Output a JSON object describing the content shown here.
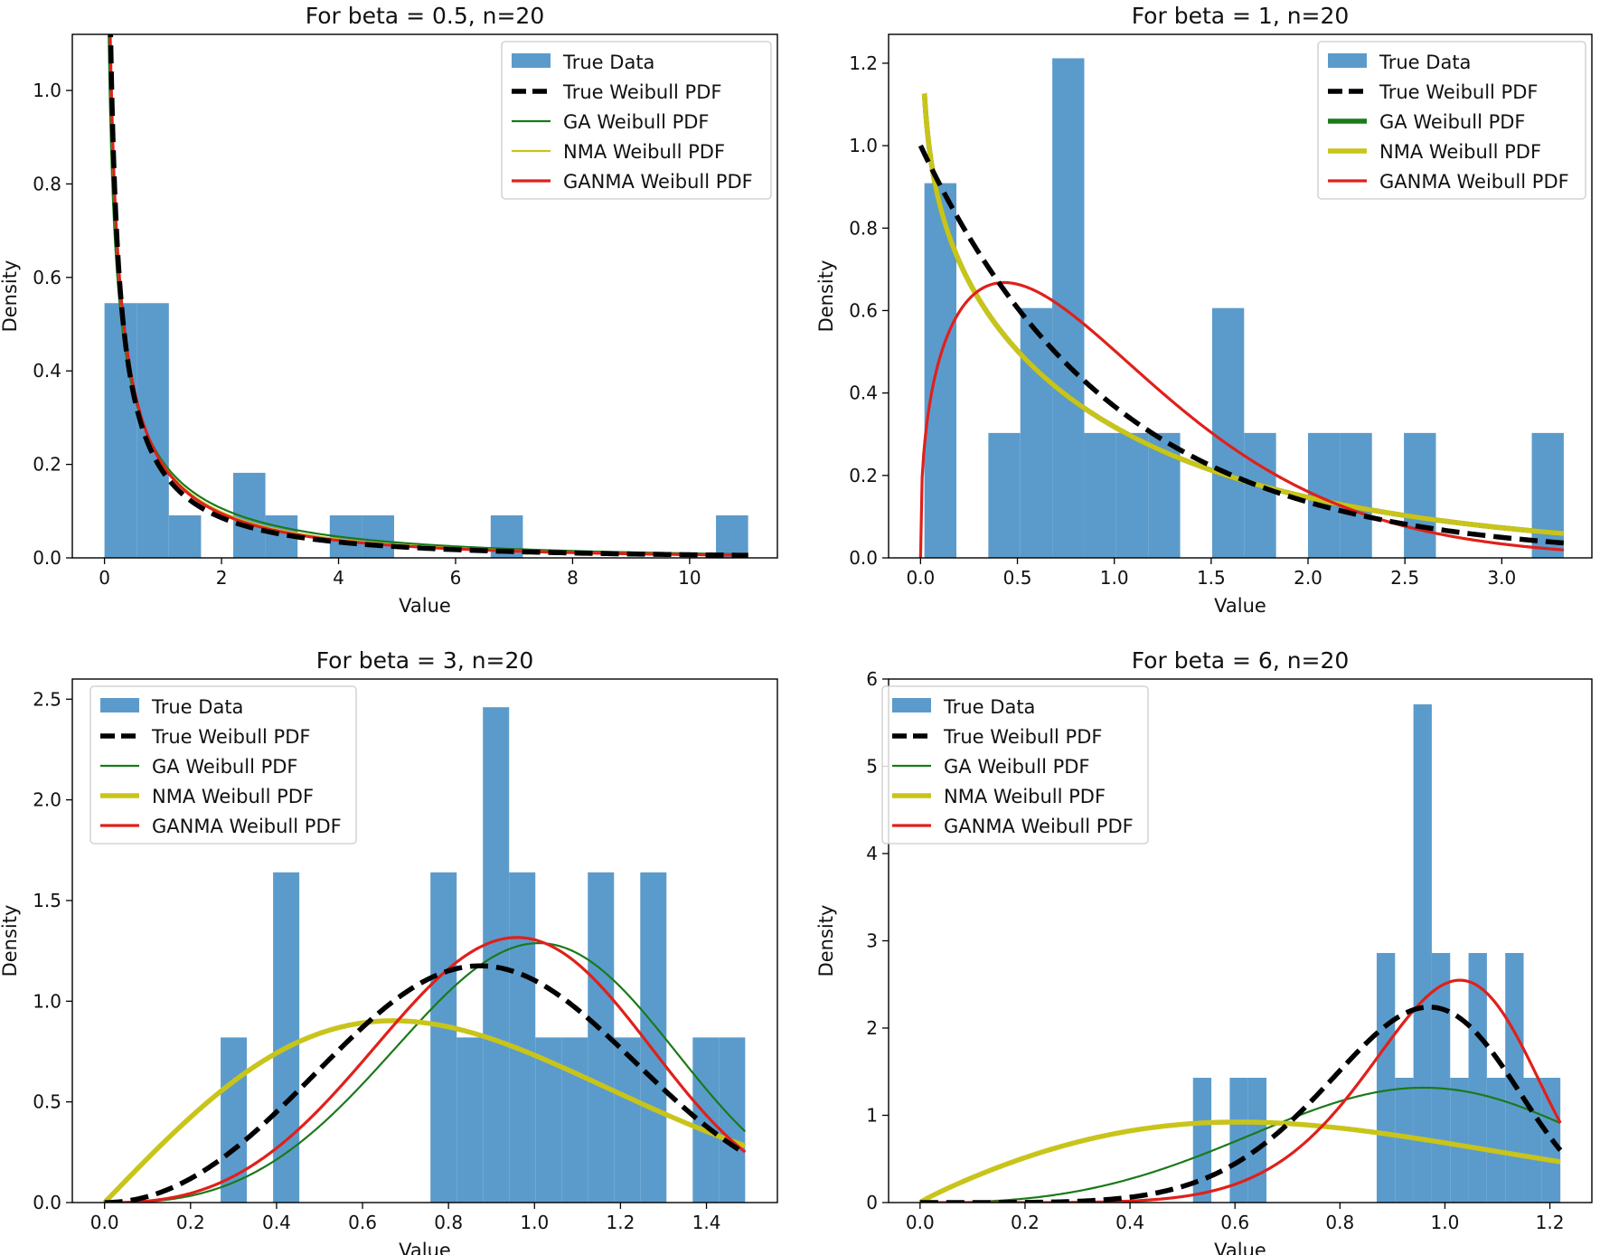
{
  "chart_data": [
    {
      "type": "bar",
      "title": "For beta = 0.5, n=20",
      "xlabel": "Value",
      "ylabel": "Density",
      "xlim": [
        -0.55,
        11.5
      ],
      "ylim": [
        0,
        1.12
      ],
      "xticks": [
        0,
        2,
        4,
        6,
        8,
        10
      ],
      "xtick_labels": [
        "0",
        "2",
        "4",
        "6",
        "8",
        "10"
      ],
      "yticks": [
        0.0,
        0.2,
        0.4,
        0.6,
        0.8,
        1.0
      ],
      "ytick_labels": [
        "0.0",
        "0.2",
        "0.4",
        "0.6",
        "0.8",
        "1.0"
      ],
      "legend_position": "top-right",
      "histogram": {
        "name": "True Data",
        "color": "#5b9bcb",
        "bin_edges": [
          0.0,
          0.55,
          1.1,
          1.65,
          2.2,
          2.75,
          3.3,
          3.85,
          4.4,
          4.95,
          5.5,
          6.05,
          6.6,
          7.15,
          7.7,
          8.25,
          8.8,
          9.35,
          9.9,
          10.45,
          11.0
        ],
        "densities": [
          0.545,
          0.545,
          0.091,
          0.0,
          0.182,
          0.091,
          0.0,
          0.091,
          0.091,
          0.0,
          0.0,
          0.0,
          0.091,
          0.0,
          0.0,
          0.0,
          0.0,
          0.0,
          0.0,
          0.091
        ]
      },
      "series": [
        {
          "name": "True Weibull PDF",
          "color": "#000000",
          "style": "dashed",
          "width": "thick",
          "shape": 0.5,
          "scale": 1.0,
          "x_range": [
            0.1,
            11.0
          ]
        },
        {
          "name": "GA Weibull PDF",
          "color": "#1a7a1a",
          "style": "solid",
          "width": "thin",
          "shape": 0.58,
          "scale": 1.65,
          "x_range": [
            0.05,
            11.0
          ]
        },
        {
          "name": "NMA Weibull PDF",
          "color": "#c9c41a",
          "style": "solid",
          "width": "thin",
          "shape": 0.55,
          "scale": 1.3,
          "x_range": [
            0.06,
            11.0
          ]
        },
        {
          "name": "GANMA Weibull PDF",
          "color": "#e0201b",
          "style": "solid",
          "width": "medium",
          "shape": 0.54,
          "scale": 1.15,
          "x_range": [
            0.08,
            11.0
          ]
        }
      ]
    },
    {
      "type": "bar",
      "title": "For beta = 1, n=20",
      "xlabel": "Value",
      "ylabel": "Density",
      "xlim": [
        -0.165,
        3.465
      ],
      "ylim": [
        0,
        1.27
      ],
      "xticks": [
        0.0,
        0.5,
        1.0,
        1.5,
        2.0,
        2.5,
        3.0
      ],
      "xtick_labels": [
        "0.0",
        "0.5",
        "1.0",
        "1.5",
        "2.0",
        "2.5",
        "3.0"
      ],
      "yticks": [
        0.0,
        0.2,
        0.4,
        0.6,
        0.8,
        1.0,
        1.2
      ],
      "ytick_labels": [
        "0.0",
        "0.2",
        "0.4",
        "0.6",
        "0.8",
        "1.0",
        "1.2"
      ],
      "legend_position": "top-right",
      "histogram": {
        "name": "True Data",
        "color": "#5b9bcb",
        "bin_edges": [
          0.02,
          0.185,
          0.35,
          0.515,
          0.68,
          0.845,
          1.01,
          1.175,
          1.34,
          1.505,
          1.67,
          1.835,
          2.0,
          2.165,
          2.33,
          2.495,
          2.66,
          2.825,
          2.99,
          3.155,
          3.32
        ],
        "densities": [
          0.909,
          0.0,
          0.303,
          0.606,
          1.212,
          0.303,
          0.303,
          0.303,
          0.0,
          0.606,
          0.303,
          0.0,
          0.303,
          0.303,
          0.0,
          0.303,
          0.0,
          0.0,
          0.0,
          0.303
        ]
      },
      "series": [
        {
          "name": "True Weibull PDF",
          "color": "#000000",
          "style": "dashed",
          "width": "thick",
          "shape": 1.0,
          "scale": 1.0,
          "x_range": [
            0.0,
            3.32
          ]
        },
        {
          "name": "GA Weibull PDF",
          "color": "#1a7a1a",
          "style": "solid",
          "width": "thick",
          "shape": 0.88,
          "scale": 1.25,
          "x_range": [
            0.02,
            3.32
          ]
        },
        {
          "name": "NMA Weibull PDF",
          "color": "#c9c41a",
          "style": "solid",
          "width": "thick",
          "shape": 0.88,
          "scale": 1.25,
          "x_range": [
            0.02,
            3.32
          ]
        },
        {
          "name": "GANMA Weibull PDF",
          "color": "#e0201b",
          "style": "solid",
          "width": "medium",
          "shape": 1.38,
          "scale": 1.1,
          "x_range": [
            0.0,
            3.32
          ]
        }
      ]
    },
    {
      "type": "bar",
      "title": "For beta = 3, n=20",
      "xlabel": "Value",
      "ylabel": "Density",
      "xlim": [
        -0.075,
        1.565
      ],
      "ylim": [
        0,
        2.6
      ],
      "xticks": [
        0.0,
        0.2,
        0.4,
        0.6,
        0.8,
        1.0,
        1.2,
        1.4
      ],
      "xtick_labels": [
        "0.0",
        "0.2",
        "0.4",
        "0.6",
        "0.8",
        "1.0",
        "1.2",
        "1.4"
      ],
      "yticks": [
        0.0,
        0.5,
        1.0,
        1.5,
        2.0,
        2.5
      ],
      "ytick_labels": [
        "0.0",
        "0.5",
        "1.0",
        "1.5",
        "2.0",
        "2.5"
      ],
      "legend_position": "top-left",
      "histogram": {
        "name": "True Data",
        "color": "#5b9bcb",
        "bin_edges": [
          0.27,
          0.331,
          0.392,
          0.453,
          0.514,
          0.575,
          0.636,
          0.697,
          0.758,
          0.819,
          0.88,
          0.941,
          1.002,
          1.063,
          1.124,
          1.185,
          1.246,
          1.307,
          1.368,
          1.429,
          1.49
        ],
        "densities": [
          0.82,
          0.0,
          1.64,
          0.0,
          0.0,
          0.0,
          0.0,
          0.0,
          1.64,
          0.82,
          2.46,
          1.64,
          0.82,
          0.82,
          1.64,
          0.82,
          1.64,
          0.0,
          0.82,
          0.82
        ]
      },
      "series": [
        {
          "name": "True Weibull PDF",
          "color": "#000000",
          "style": "dashed",
          "width": "thick",
          "shape": 3.0,
          "scale": 1.0,
          "x_range": [
            0.0,
            1.49
          ]
        },
        {
          "name": "GA Weibull PDF",
          "color": "#1a7a1a",
          "style": "solid",
          "width": "thin",
          "shape": 3.7,
          "scale": 1.1,
          "x_range": [
            0.0,
            1.49
          ]
        },
        {
          "name": "NMA Weibull PDF",
          "color": "#c9c41a",
          "style": "solid",
          "width": "thick",
          "shape": 2.0,
          "scale": 0.95,
          "x_range": [
            0.0,
            1.49
          ]
        },
        {
          "name": "GANMA Weibull PDF",
          "color": "#e0201b",
          "style": "solid",
          "width": "medium",
          "shape": 3.6,
          "scale": 1.05,
          "x_range": [
            0.0,
            1.49
          ]
        }
      ]
    },
    {
      "type": "bar",
      "title": "For beta = 6, n=20",
      "xlabel": "Value",
      "ylabel": "Density",
      "xlim": [
        -0.06,
        1.28
      ],
      "ylim": [
        0,
        6.0
      ],
      "xticks": [
        0.0,
        0.2,
        0.4,
        0.6,
        0.8,
        1.0,
        1.2
      ],
      "xtick_labels": [
        "0.0",
        "0.2",
        "0.4",
        "0.6",
        "0.8",
        "1.0",
        "1.2"
      ],
      "yticks": [
        0,
        1,
        2,
        3,
        4,
        5,
        6
      ],
      "ytick_labels": [
        "0",
        "1",
        "2",
        "3",
        "4",
        "5",
        "6"
      ],
      "legend_position": "top-left",
      "histogram": {
        "name": "True Data",
        "color": "#5b9bcb",
        "bin_edges": [
          0.52,
          0.555,
          0.59,
          0.625,
          0.66,
          0.695,
          0.73,
          0.765,
          0.8,
          0.835,
          0.87,
          0.905,
          0.94,
          0.975,
          1.01,
          1.045,
          1.08,
          1.115,
          1.15,
          1.185,
          1.22
        ],
        "densities": [
          1.43,
          0.0,
          1.43,
          1.43,
          0.0,
          0.0,
          0.0,
          0.0,
          0.0,
          0.0,
          2.86,
          1.43,
          5.71,
          2.86,
          1.43,
          2.86,
          1.43,
          2.86,
          1.43,
          1.43
        ]
      },
      "series": [
        {
          "name": "True Weibull PDF",
          "color": "#000000",
          "style": "dashed",
          "width": "thick",
          "shape": 6.0,
          "scale": 1.0,
          "x_range": [
            0.0,
            1.22
          ]
        },
        {
          "name": "GA Weibull PDF",
          "color": "#1a7a1a",
          "style": "solid",
          "width": "thin",
          "shape": 3.6,
          "scale": 1.05,
          "x_range": [
            0.0,
            1.22
          ]
        },
        {
          "name": "NMA Weibull PDF",
          "color": "#c9c41a",
          "style": "solid",
          "width": "thick",
          "shape": 1.9,
          "scale": 0.9,
          "x_range": [
            0.0,
            1.22
          ]
        },
        {
          "name": "GANMA Weibull PDF",
          "color": "#e0201b",
          "style": "solid",
          "width": "medium",
          "shape": 7.2,
          "scale": 1.05,
          "x_range": [
            0.0,
            1.22
          ]
        }
      ]
    }
  ]
}
